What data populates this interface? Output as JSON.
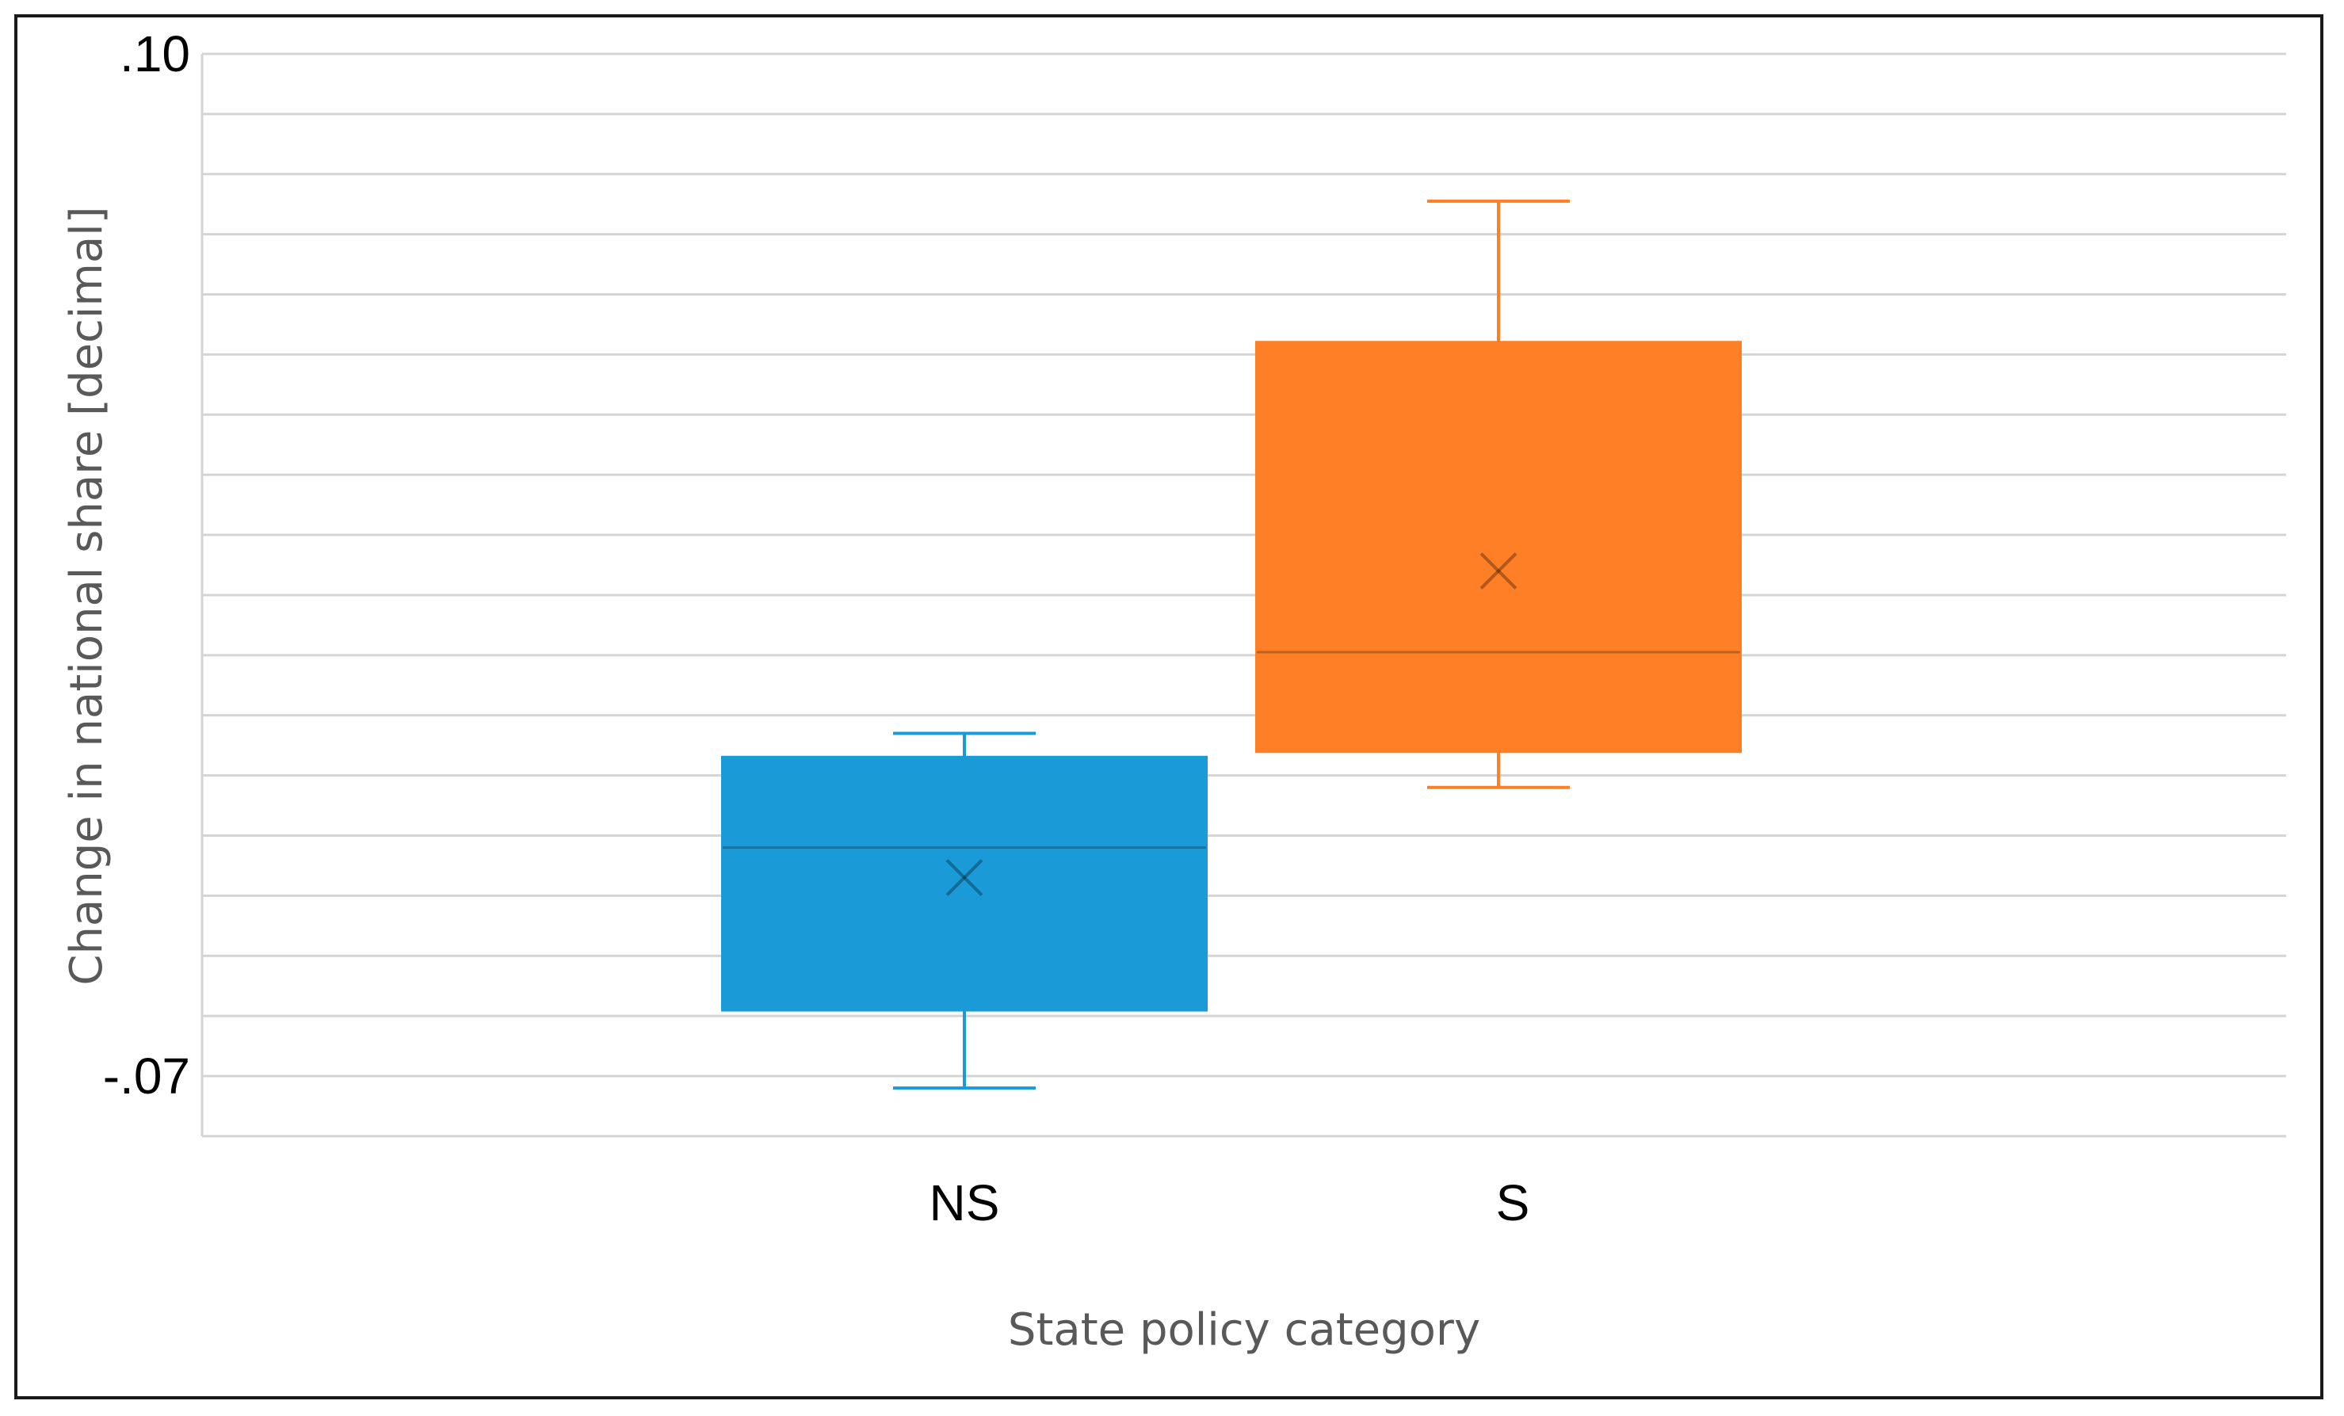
{
  "chart_data": {
    "type": "box",
    "title": "",
    "xlabel": "State policy category",
    "ylabel": "Change in national share [decimal]",
    "ylim": [
      -0.07,
      0.1
    ],
    "ytick_labels": [
      {
        "value": 0.1,
        "label": ".10"
      },
      {
        "value": -0.07,
        "label": "-.07"
      }
    ],
    "gridline_step": 0.01,
    "grid": true,
    "categories": [
      "NS",
      "S"
    ],
    "series": [
      {
        "category": "NS",
        "color": "#1a9bd7",
        "min": -0.072,
        "q1": -0.059,
        "median": -0.032,
        "mean": -0.037,
        "q3": -0.017,
        "max": -0.013
      },
      {
        "category": "S",
        "color": "#ff7f27",
        "min": -0.022,
        "q1": -0.016,
        "median": 0.0005,
        "mean": 0.014,
        "q3": 0.052,
        "max": 0.0755
      }
    ]
  }
}
